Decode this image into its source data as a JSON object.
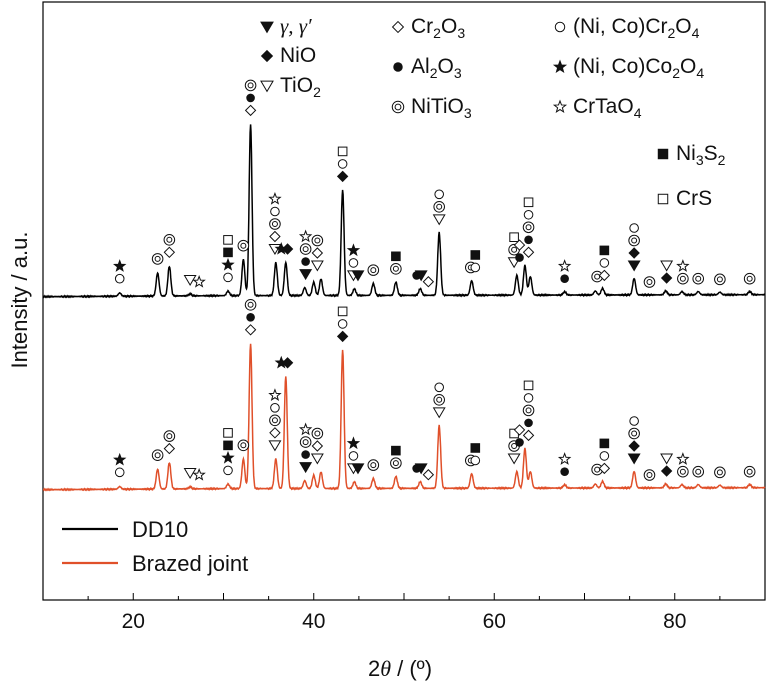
{
  "chart_data": {
    "type": "line",
    "title": "",
    "xlabel": "2θ / (º)",
    "ylabel": "Intensity / a.u.",
    "xlim": [
      10,
      90
    ],
    "xticks": [
      20,
      40,
      60,
      80
    ],
    "yticks": "none",
    "series": [
      {
        "name": "DD10",
        "color": "#000000",
        "baseline": 0.3,
        "peaks": [
          [
            18.5,
            0.05
          ],
          [
            22.7,
            0.35
          ],
          [
            24.0,
            0.45
          ],
          [
            26.3,
            0.03
          ],
          [
            30.5,
            0.07
          ],
          [
            32.2,
            0.55
          ],
          [
            33.0,
            2.6
          ],
          [
            35.8,
            0.5
          ],
          [
            36.9,
            0.5
          ],
          [
            39.0,
            0.12
          ],
          [
            40.0,
            0.2
          ],
          [
            40.8,
            0.25
          ],
          [
            43.2,
            1.6
          ],
          [
            44.5,
            0.1
          ],
          [
            46.6,
            0.18
          ],
          [
            49.1,
            0.2
          ],
          [
            51.8,
            0.1
          ],
          [
            53.9,
            0.95
          ],
          [
            57.5,
            0.22
          ],
          [
            62.5,
            0.3
          ],
          [
            63.4,
            0.45
          ],
          [
            64.0,
            0.28
          ],
          [
            67.8,
            0.05
          ],
          [
            71.2,
            0.06
          ],
          [
            72.0,
            0.1
          ],
          [
            75.5,
            0.25
          ],
          [
            79.0,
            0.06
          ],
          [
            80.8,
            0.05
          ],
          [
            82.6,
            0.05
          ],
          [
            85.0,
            0.04
          ],
          [
            88.3,
            0.05
          ]
        ]
      },
      {
        "name": "Brazed joint",
        "color": "#e0502a",
        "baseline": 0.0,
        "peaks": [
          [
            18.5,
            0.04
          ],
          [
            22.7,
            0.3
          ],
          [
            24.0,
            0.4
          ],
          [
            26.3,
            0.03
          ],
          [
            30.5,
            0.07
          ],
          [
            32.2,
            0.45
          ],
          [
            33.0,
            2.2
          ],
          [
            35.8,
            0.45
          ],
          [
            36.9,
            1.7
          ],
          [
            39.0,
            0.12
          ],
          [
            40.0,
            0.2
          ],
          [
            40.8,
            0.25
          ],
          [
            43.2,
            2.1
          ],
          [
            44.5,
            0.1
          ],
          [
            46.6,
            0.15
          ],
          [
            49.1,
            0.18
          ],
          [
            51.8,
            0.1
          ],
          [
            53.9,
            0.95
          ],
          [
            57.5,
            0.22
          ],
          [
            62.5,
            0.25
          ],
          [
            63.4,
            0.6
          ],
          [
            64.0,
            0.25
          ],
          [
            67.8,
            0.05
          ],
          [
            71.2,
            0.06
          ],
          [
            72.0,
            0.1
          ],
          [
            75.5,
            0.25
          ],
          [
            79.0,
            0.06
          ],
          [
            80.8,
            0.05
          ],
          [
            82.6,
            0.05
          ],
          [
            85.0,
            0.04
          ],
          [
            88.3,
            0.05
          ]
        ]
      }
    ],
    "phase_legend": [
      {
        "id": "gamma",
        "marker": "tri-down-filled",
        "label": "γ, γ′"
      },
      {
        "id": "nio",
        "marker": "diamond-filled",
        "label": "NiO"
      },
      {
        "id": "tio2",
        "marker": "tri-down-open",
        "label": "TiO",
        "sub": "2"
      },
      {
        "id": "cr2o3",
        "marker": "diamond-open",
        "label": "Cr",
        "sub": "2",
        "label2": "O",
        "sub2": "3"
      },
      {
        "id": "al2o3",
        "marker": "circle-filled",
        "label": "Al",
        "sub": "2",
        "label2": "O",
        "sub2": "3"
      },
      {
        "id": "nitio3",
        "marker": "double-circle",
        "label": "NiTiO",
        "sub": "3"
      },
      {
        "id": "nico_cr2o4",
        "marker": "circle-open",
        "label": "(Ni, Co)Cr",
        "sub": "2",
        "label2": "O",
        "sub2": "4"
      },
      {
        "id": "nico_co2o4",
        "marker": "star-filled",
        "label": "(Ni, Co)Co",
        "sub": "2",
        "label2": "O",
        "sub2": "4"
      },
      {
        "id": "crtao4",
        "marker": "star-open",
        "label": "CrTaO",
        "sub": "4"
      },
      {
        "id": "ni3s2",
        "marker": "square-filled",
        "label": "Ni",
        "sub": "3",
        "label2": "S",
        "sub2": "2"
      },
      {
        "id": "crs",
        "marker": "square-open",
        "label": "CrS"
      }
    ],
    "peak_markers": [
      {
        "x": 18.5,
        "phases": [
          "circle-open",
          "star-filled"
        ]
      },
      {
        "x": 22.7,
        "phases": [
          "double-circle"
        ]
      },
      {
        "x": 24.0,
        "phases": [
          "diamond-open",
          "double-circle"
        ]
      },
      {
        "x": 26.3,
        "phases": [
          "tri-down-open"
        ]
      },
      {
        "x": 27.3,
        "phases": [
          "star-open"
        ]
      },
      {
        "x": 30.5,
        "phases": [
          "circle-open",
          "star-filled",
          "square-filled",
          "square-open"
        ]
      },
      {
        "x": 32.2,
        "phases": [
          "double-circle"
        ]
      },
      {
        "x": 33.0,
        "phases": [
          "diamond-open",
          "circle-filled",
          "double-circle"
        ]
      },
      {
        "x": 35.7,
        "phases": [
          "tri-down-open",
          "diamond-open",
          "double-circle",
          "circle-open",
          "star-open"
        ]
      },
      {
        "x": 36.4,
        "phases": [
          "star-filled"
        ]
      },
      {
        "x": 37.1,
        "phases": [
          "diamond-filled"
        ]
      },
      {
        "x": 39.1,
        "phases": [
          "tri-down-filled",
          "circle-filled",
          "double-circle",
          "star-open"
        ]
      },
      {
        "x": 40.4,
        "phases": [
          "tri-down-open",
          "diamond-open",
          "double-circle"
        ]
      },
      {
        "x": 43.2,
        "phases": [
          "diamond-filled",
          "circle-open",
          "square-open"
        ]
      },
      {
        "x": 44.4,
        "phases": [
          "tri-down-open",
          "circle-open",
          "star-filled"
        ]
      },
      {
        "x": 44.9,
        "phases": [
          "tri-down-filled"
        ]
      },
      {
        "x": 46.6,
        "phases": [
          "double-circle"
        ]
      },
      {
        "x": 49.1,
        "phases": [
          "double-circle",
          "square-filled"
        ]
      },
      {
        "x": 51.4,
        "phases": [
          "circle-filled"
        ]
      },
      {
        "x": 51.9,
        "phases": [
          "tri-down-filled"
        ]
      },
      {
        "x": 52.7,
        "phases": [
          "diamond-open"
        ]
      },
      {
        "x": 53.9,
        "phases": [
          "tri-down-open",
          "double-circle",
          "circle-open"
        ]
      },
      {
        "x": 57.4,
        "phases": [
          "double-circle"
        ]
      },
      {
        "x": 57.9,
        "phases": [
          "circle-open",
          "square-filled"
        ]
      },
      {
        "x": 62.2,
        "phases": [
          "tri-down-open",
          "double-circle",
          "square-open"
        ]
      },
      {
        "x": 62.8,
        "phases": [
          "circle-filled",
          "diamond-open"
        ]
      },
      {
        "x": 63.8,
        "phases": [
          "diamond-open",
          "circle-filled",
          "double-circle",
          "circle-open",
          "square-open"
        ]
      },
      {
        "x": 67.8,
        "phases": [
          "circle-filled",
          "star-open"
        ]
      },
      {
        "x": 71.4,
        "phases": [
          "double-circle"
        ]
      },
      {
        "x": 72.2,
        "phases": [
          "diamond-open",
          "circle-open",
          "square-filled"
        ]
      },
      {
        "x": 75.5,
        "phases": [
          "tri-down-filled",
          "diamond-filled",
          "double-circle",
          "circle-open"
        ]
      },
      {
        "x": 77.2,
        "phases": [
          "double-circle"
        ]
      },
      {
        "x": 79.1,
        "phases": [
          "diamond-filled",
          "tri-down-open"
        ]
      },
      {
        "x": 80.9,
        "phases": [
          "double-circle",
          "star-open"
        ]
      },
      {
        "x": 82.6,
        "phases": [
          "double-circle"
        ]
      },
      {
        "x": 85.0,
        "phases": [
          "double-circle"
        ]
      },
      {
        "x": 88.3,
        "phases": [
          "double-circle"
        ]
      }
    ],
    "legend_position": "bottom-left"
  }
}
